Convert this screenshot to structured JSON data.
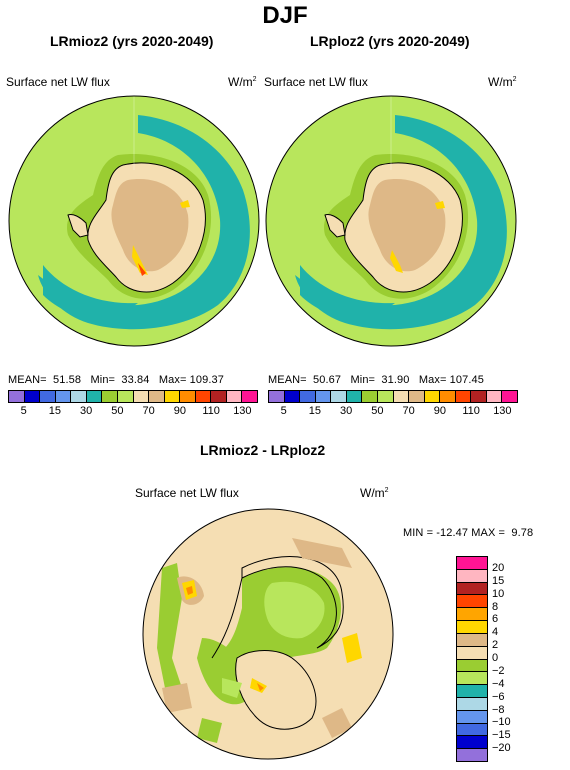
{
  "figure_title": "DJF",
  "panels": [
    {
      "title": "LRmioz2 (yrs 2020-2049)",
      "variable": "Surface net LW flux",
      "units": "W/m",
      "units_sup": "2",
      "mean_label": "MEAN=",
      "mean": "51.58",
      "min_label": "Min=",
      "min": "33.84",
      "max_label": "Max=",
      "max": "109.37"
    },
    {
      "title": "LRploz2 (yrs 2020-2049)",
      "variable": "Surface net LW flux",
      "units": "W/m",
      "units_sup": "2",
      "mean_label": "MEAN=",
      "mean": "50.67",
      "min_label": "Min=",
      "min": "31.90",
      "max_label": "Max=",
      "max": "107.45"
    }
  ],
  "diff_panel": {
    "title": "LRmioz2 - LRploz2",
    "variable": "Surface net LW flux",
    "units": "W/m",
    "units_sup": "2",
    "stats": "MIN = -12.47 MAX =  9.78"
  },
  "colorbar_abs": {
    "colors": [
      "#9370db",
      "#0000cd",
      "#4169e1",
      "#6495ed",
      "#add8e6",
      "#20b2aa",
      "#9acd32",
      "#b8e65c",
      "#f5deb3",
      "#deb887",
      "#ffd700",
      "#ff8c00",
      "#ff4500",
      "#b22222",
      "#ffb6c1",
      "#ff1493"
    ],
    "ticks": [
      "5",
      "15",
      "30",
      "50",
      "70",
      "90",
      "110",
      "130"
    ]
  },
  "colorbar_diff": {
    "colors": [
      "#ff1493",
      "#ffb6c1",
      "#b22222",
      "#ff4500",
      "#ffa500",
      "#ffd700",
      "#deb887",
      "#f5deb3",
      "#9acd32",
      "#b8e65c",
      "#20b2aa",
      "#add8e6",
      "#6495ed",
      "#4169e1",
      "#0000cd",
      "#9370db"
    ],
    "ticks": [
      "20",
      "15",
      "10",
      "8",
      "6",
      "4",
      "2",
      "0",
      "−2",
      "−4",
      "−6",
      "−8",
      "−10",
      "−15",
      "−20"
    ]
  },
  "colors": {
    "ocean_green": "#b8e65c",
    "teal": "#20b2aa",
    "ice_tan": "#deb887",
    "ice_wheat": "#f5deb3",
    "olive": "#9acd32"
  }
}
